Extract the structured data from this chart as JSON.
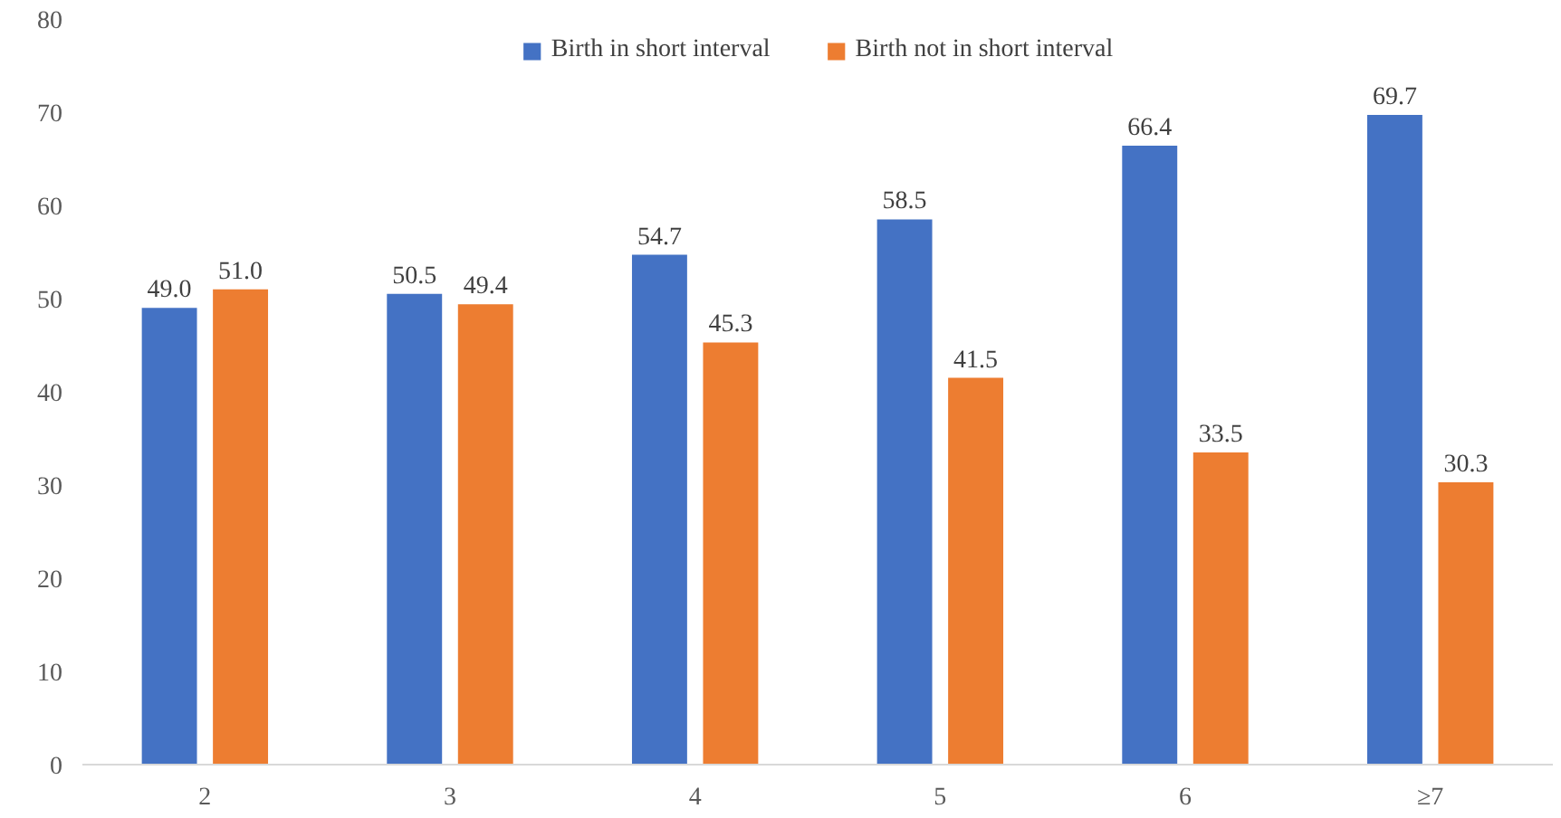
{
  "chart_data": {
    "type": "bar",
    "categories": [
      "2",
      "3",
      "4",
      "5",
      "6",
      "≥7"
    ],
    "series": [
      {
        "name": "Birth in short interval",
        "color": "#4472c4",
        "values": [
          49.0,
          50.5,
          54.7,
          58.5,
          66.4,
          69.7
        ],
        "value_labels": [
          "49.0",
          "50.5",
          "54.7",
          "58.5",
          "66.4",
          "69.7"
        ]
      },
      {
        "name": "Birth not in short interval",
        "color": "#ed7d31",
        "values": [
          51.0,
          49.4,
          45.3,
          41.5,
          33.5,
          30.3
        ],
        "value_labels": [
          "51.0",
          "49.4",
          "45.3",
          "41.5",
          "33.5",
          "30.3"
        ]
      }
    ],
    "ylim": [
      0,
      80
    ],
    "yticks": [
      0,
      10,
      20,
      30,
      40,
      50,
      60,
      70,
      80
    ],
    "grid": false,
    "legend": "top"
  }
}
